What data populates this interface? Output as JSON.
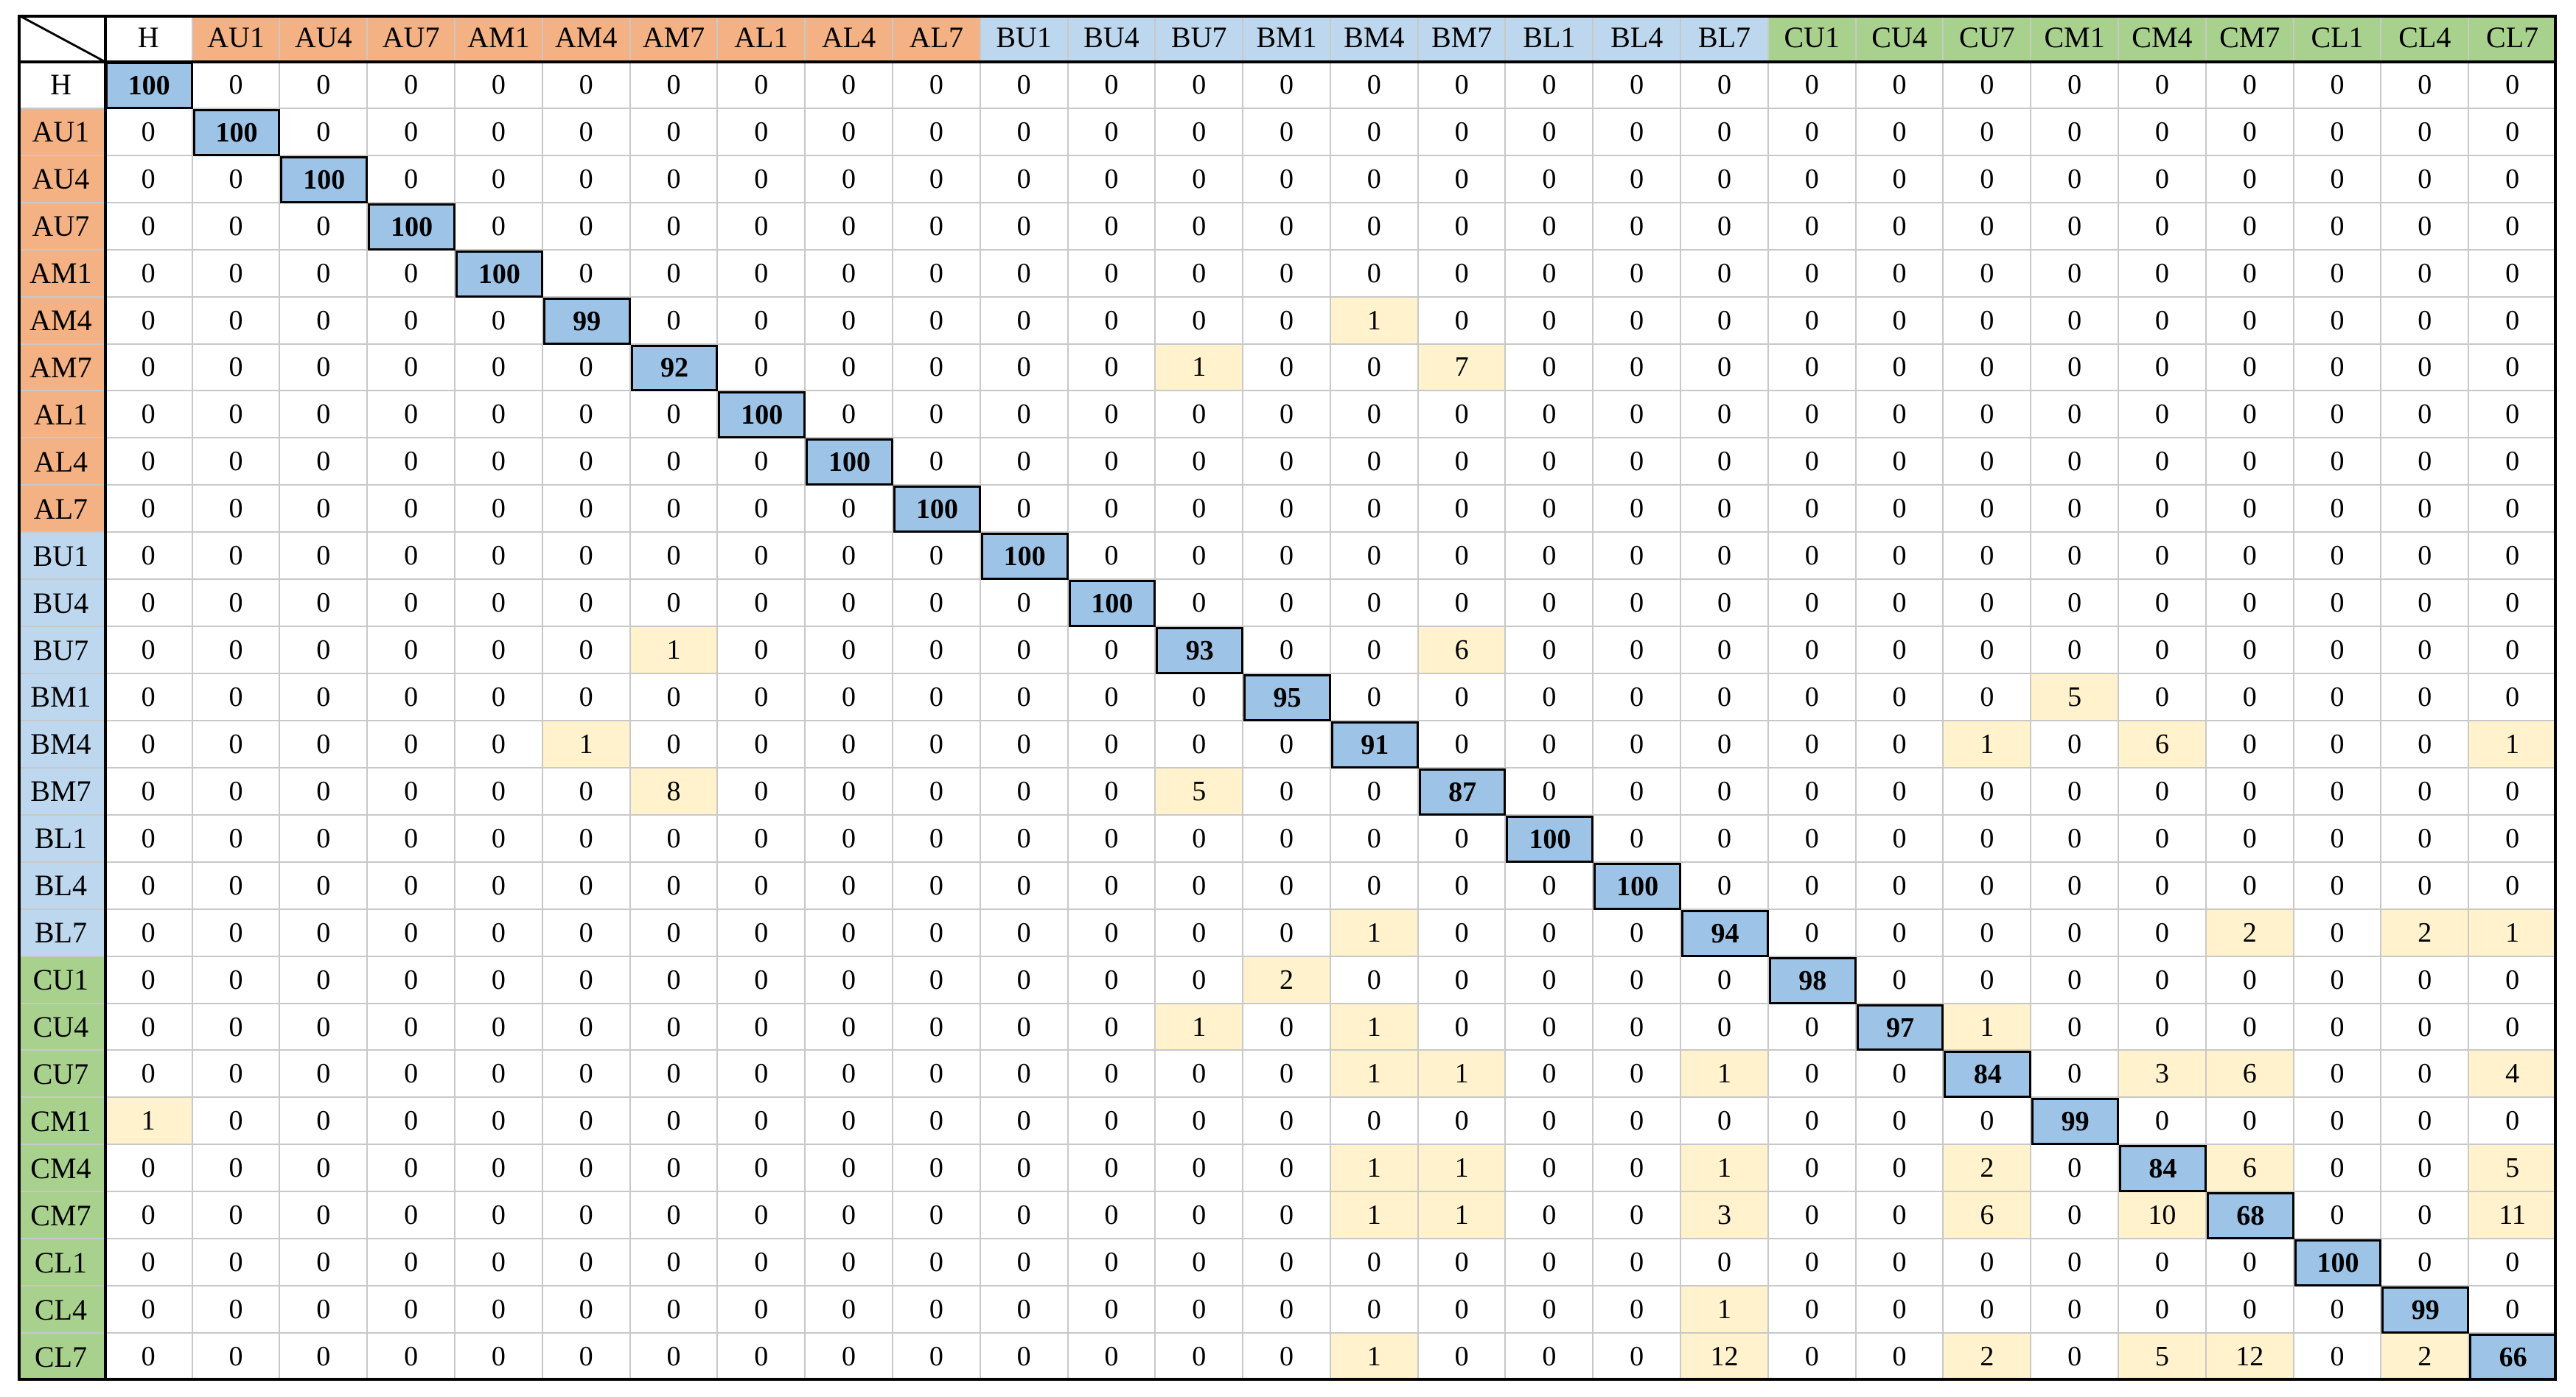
{
  "chart_data": {
    "type": "heatmap",
    "title": "",
    "corner_label": "",
    "labels": [
      "H",
      "AU1",
      "AU4",
      "AU7",
      "AM1",
      "AM4",
      "AM7",
      "AL1",
      "AL4",
      "AL7",
      "BU1",
      "BU4",
      "BU7",
      "BM1",
      "BM4",
      "BM7",
      "BL1",
      "BL4",
      "BL7",
      "CU1",
      "CU4",
      "CU7",
      "CM1",
      "CM4",
      "CM7",
      "CL1",
      "CL4",
      "CL7"
    ],
    "matrix": [
      [
        100,
        0,
        0,
        0,
        0,
        0,
        0,
        0,
        0,
        0,
        0,
        0,
        0,
        0,
        0,
        0,
        0,
        0,
        0,
        0,
        0,
        0,
        0,
        0,
        0,
        0,
        0,
        0
      ],
      [
        0,
        100,
        0,
        0,
        0,
        0,
        0,
        0,
        0,
        0,
        0,
        0,
        0,
        0,
        0,
        0,
        0,
        0,
        0,
        0,
        0,
        0,
        0,
        0,
        0,
        0,
        0,
        0
      ],
      [
        0,
        0,
        100,
        0,
        0,
        0,
        0,
        0,
        0,
        0,
        0,
        0,
        0,
        0,
        0,
        0,
        0,
        0,
        0,
        0,
        0,
        0,
        0,
        0,
        0,
        0,
        0,
        0
      ],
      [
        0,
        0,
        0,
        100,
        0,
        0,
        0,
        0,
        0,
        0,
        0,
        0,
        0,
        0,
        0,
        0,
        0,
        0,
        0,
        0,
        0,
        0,
        0,
        0,
        0,
        0,
        0,
        0
      ],
      [
        0,
        0,
        0,
        0,
        100,
        0,
        0,
        0,
        0,
        0,
        0,
        0,
        0,
        0,
        0,
        0,
        0,
        0,
        0,
        0,
        0,
        0,
        0,
        0,
        0,
        0,
        0,
        0
      ],
      [
        0,
        0,
        0,
        0,
        0,
        99,
        0,
        0,
        0,
        0,
        0,
        0,
        0,
        0,
        1,
        0,
        0,
        0,
        0,
        0,
        0,
        0,
        0,
        0,
        0,
        0,
        0,
        0
      ],
      [
        0,
        0,
        0,
        0,
        0,
        0,
        92,
        0,
        0,
        0,
        0,
        0,
        1,
        0,
        0,
        7,
        0,
        0,
        0,
        0,
        0,
        0,
        0,
        0,
        0,
        0,
        0,
        0
      ],
      [
        0,
        0,
        0,
        0,
        0,
        0,
        0,
        100,
        0,
        0,
        0,
        0,
        0,
        0,
        0,
        0,
        0,
        0,
        0,
        0,
        0,
        0,
        0,
        0,
        0,
        0,
        0,
        0
      ],
      [
        0,
        0,
        0,
        0,
        0,
        0,
        0,
        0,
        100,
        0,
        0,
        0,
        0,
        0,
        0,
        0,
        0,
        0,
        0,
        0,
        0,
        0,
        0,
        0,
        0,
        0,
        0,
        0
      ],
      [
        0,
        0,
        0,
        0,
        0,
        0,
        0,
        0,
        0,
        100,
        0,
        0,
        0,
        0,
        0,
        0,
        0,
        0,
        0,
        0,
        0,
        0,
        0,
        0,
        0,
        0,
        0,
        0
      ],
      [
        0,
        0,
        0,
        0,
        0,
        0,
        0,
        0,
        0,
        0,
        100,
        0,
        0,
        0,
        0,
        0,
        0,
        0,
        0,
        0,
        0,
        0,
        0,
        0,
        0,
        0,
        0,
        0
      ],
      [
        0,
        0,
        0,
        0,
        0,
        0,
        0,
        0,
        0,
        0,
        0,
        100,
        0,
        0,
        0,
        0,
        0,
        0,
        0,
        0,
        0,
        0,
        0,
        0,
        0,
        0,
        0,
        0
      ],
      [
        0,
        0,
        0,
        0,
        0,
        0,
        1,
        0,
        0,
        0,
        0,
        0,
        93,
        0,
        0,
        6,
        0,
        0,
        0,
        0,
        0,
        0,
        0,
        0,
        0,
        0,
        0,
        0
      ],
      [
        0,
        0,
        0,
        0,
        0,
        0,
        0,
        0,
        0,
        0,
        0,
        0,
        0,
        95,
        0,
        0,
        0,
        0,
        0,
        0,
        0,
        0,
        5,
        0,
        0,
        0,
        0,
        0
      ],
      [
        0,
        0,
        0,
        0,
        0,
        1,
        0,
        0,
        0,
        0,
        0,
        0,
        0,
        0,
        91,
        0,
        0,
        0,
        0,
        0,
        0,
        1,
        0,
        6,
        0,
        0,
        0,
        1
      ],
      [
        0,
        0,
        0,
        0,
        0,
        0,
        8,
        0,
        0,
        0,
        0,
        0,
        5,
        0,
        0,
        87,
        0,
        0,
        0,
        0,
        0,
        0,
        0,
        0,
        0,
        0,
        0,
        0
      ],
      [
        0,
        0,
        0,
        0,
        0,
        0,
        0,
        0,
        0,
        0,
        0,
        0,
        0,
        0,
        0,
        0,
        100,
        0,
        0,
        0,
        0,
        0,
        0,
        0,
        0,
        0,
        0,
        0
      ],
      [
        0,
        0,
        0,
        0,
        0,
        0,
        0,
        0,
        0,
        0,
        0,
        0,
        0,
        0,
        0,
        0,
        0,
        100,
        0,
        0,
        0,
        0,
        0,
        0,
        0,
        0,
        0,
        0
      ],
      [
        0,
        0,
        0,
        0,
        0,
        0,
        0,
        0,
        0,
        0,
        0,
        0,
        0,
        0,
        1,
        0,
        0,
        0,
        94,
        0,
        0,
        0,
        0,
        0,
        2,
        0,
        2,
        1
      ],
      [
        0,
        0,
        0,
        0,
        0,
        0,
        0,
        0,
        0,
        0,
        0,
        0,
        0,
        2,
        0,
        0,
        0,
        0,
        0,
        98,
        0,
        0,
        0,
        0,
        0,
        0,
        0,
        0
      ],
      [
        0,
        0,
        0,
        0,
        0,
        0,
        0,
        0,
        0,
        0,
        0,
        0,
        1,
        0,
        1,
        0,
        0,
        0,
        0,
        0,
        97,
        1,
        0,
        0,
        0,
        0,
        0,
        0
      ],
      [
        0,
        0,
        0,
        0,
        0,
        0,
        0,
        0,
        0,
        0,
        0,
        0,
        0,
        0,
        1,
        1,
        0,
        0,
        1,
        0,
        0,
        84,
        0,
        3,
        6,
        0,
        0,
        4
      ],
      [
        1,
        0,
        0,
        0,
        0,
        0,
        0,
        0,
        0,
        0,
        0,
        0,
        0,
        0,
        0,
        0,
        0,
        0,
        0,
        0,
        0,
        0,
        99,
        0,
        0,
        0,
        0,
        0
      ],
      [
        0,
        0,
        0,
        0,
        0,
        0,
        0,
        0,
        0,
        0,
        0,
        0,
        0,
        0,
        1,
        1,
        0,
        0,
        1,
        0,
        0,
        2,
        0,
        84,
        6,
        0,
        0,
        5
      ],
      [
        0,
        0,
        0,
        0,
        0,
        0,
        0,
        0,
        0,
        0,
        0,
        0,
        0,
        0,
        1,
        1,
        0,
        0,
        3,
        0,
        0,
        6,
        0,
        10,
        68,
        0,
        0,
        11
      ],
      [
        0,
        0,
        0,
        0,
        0,
        0,
        0,
        0,
        0,
        0,
        0,
        0,
        0,
        0,
        0,
        0,
        0,
        0,
        0,
        0,
        0,
        0,
        0,
        0,
        0,
        100,
        0,
        0
      ],
      [
        0,
        0,
        0,
        0,
        0,
        0,
        0,
        0,
        0,
        0,
        0,
        0,
        0,
        0,
        0,
        0,
        0,
        0,
        1,
        0,
        0,
        0,
        0,
        0,
        0,
        0,
        99,
        0
      ],
      [
        0,
        0,
        0,
        0,
        0,
        0,
        0,
        0,
        0,
        0,
        0,
        0,
        0,
        0,
        1,
        0,
        0,
        0,
        12,
        0,
        0,
        2,
        0,
        5,
        12,
        0,
        2,
        66
      ]
    ],
    "colors": {
      "H": "#ffffff",
      "A": "#f4b183",
      "B": "#bdd7ee",
      "C": "#a9d18e",
      "diagonal": "#9dc3e6",
      "offdiag_nonzero": "#fff2cc",
      "grid": "#c8c8c8",
      "border": "#000000"
    },
    "grid": true
  }
}
